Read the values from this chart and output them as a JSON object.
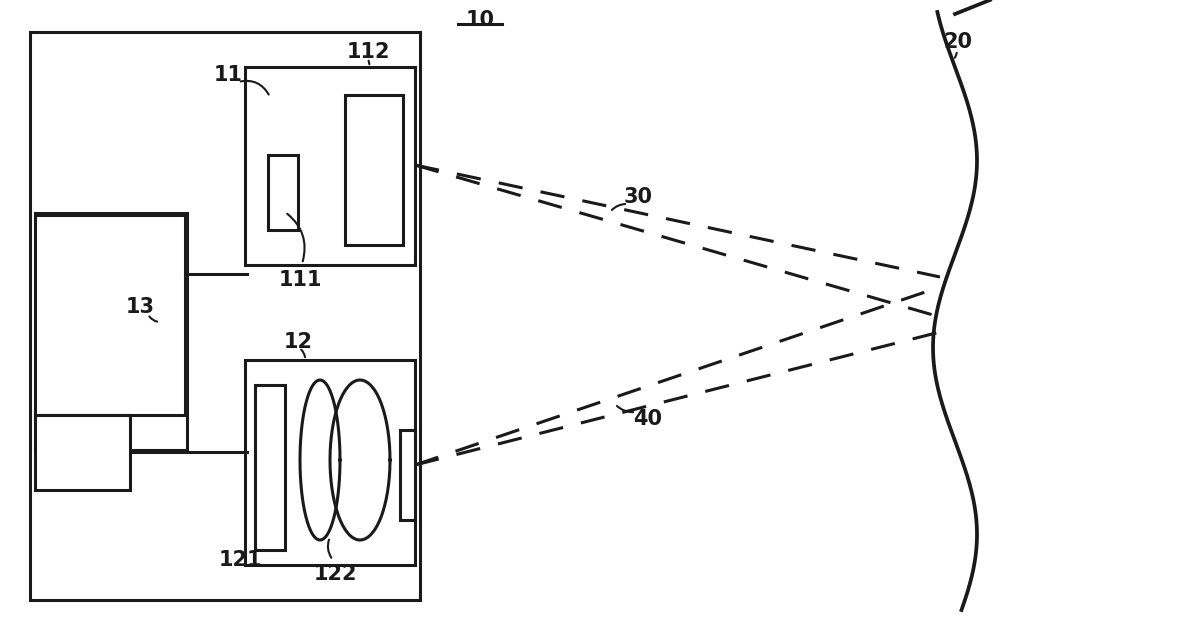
{
  "bg_color": "#ffffff",
  "line_color": "#1a1a1a",
  "label_color": "#1a1a1a",
  "label_fontsize": 15,
  "label_fontweight": "bold",
  "fig_width": 12.04,
  "fig_height": 6.32
}
